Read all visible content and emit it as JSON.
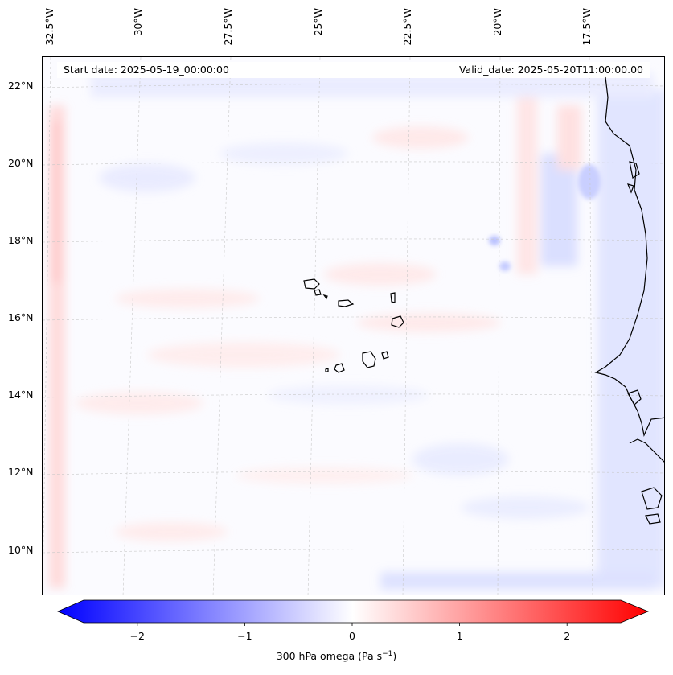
{
  "map": {
    "lon_labels": [
      "32.5°W",
      "30°W",
      "27.5°W",
      "25°W",
      "22.5°W",
      "20°W",
      "17.5°W"
    ],
    "lat_labels": [
      "22°N",
      "20°N",
      "18°N",
      "16°N",
      "14°N",
      "12°N",
      "10°N"
    ],
    "start_date": "Start date: 2025-05-19_00:00:00",
    "valid_date": "Valid_date: 2025-05-20T11:00:00.00",
    "coastline_color": "#000000",
    "gridline_color": "#c8c8c8"
  },
  "colorbar": {
    "label_main": "300 hPa omega (Pa s",
    "label_sup": "−1",
    "label_tail": ")",
    "ticks": [
      "−2",
      "−1",
      "0",
      "1",
      "2"
    ],
    "tick_values": [
      -2,
      -1,
      0,
      1,
      2
    ],
    "range": [
      -2.5,
      2.5
    ],
    "low_color": "#0000ff",
    "mid_color": "#ffffff",
    "high_color": "#ff0000"
  }
}
